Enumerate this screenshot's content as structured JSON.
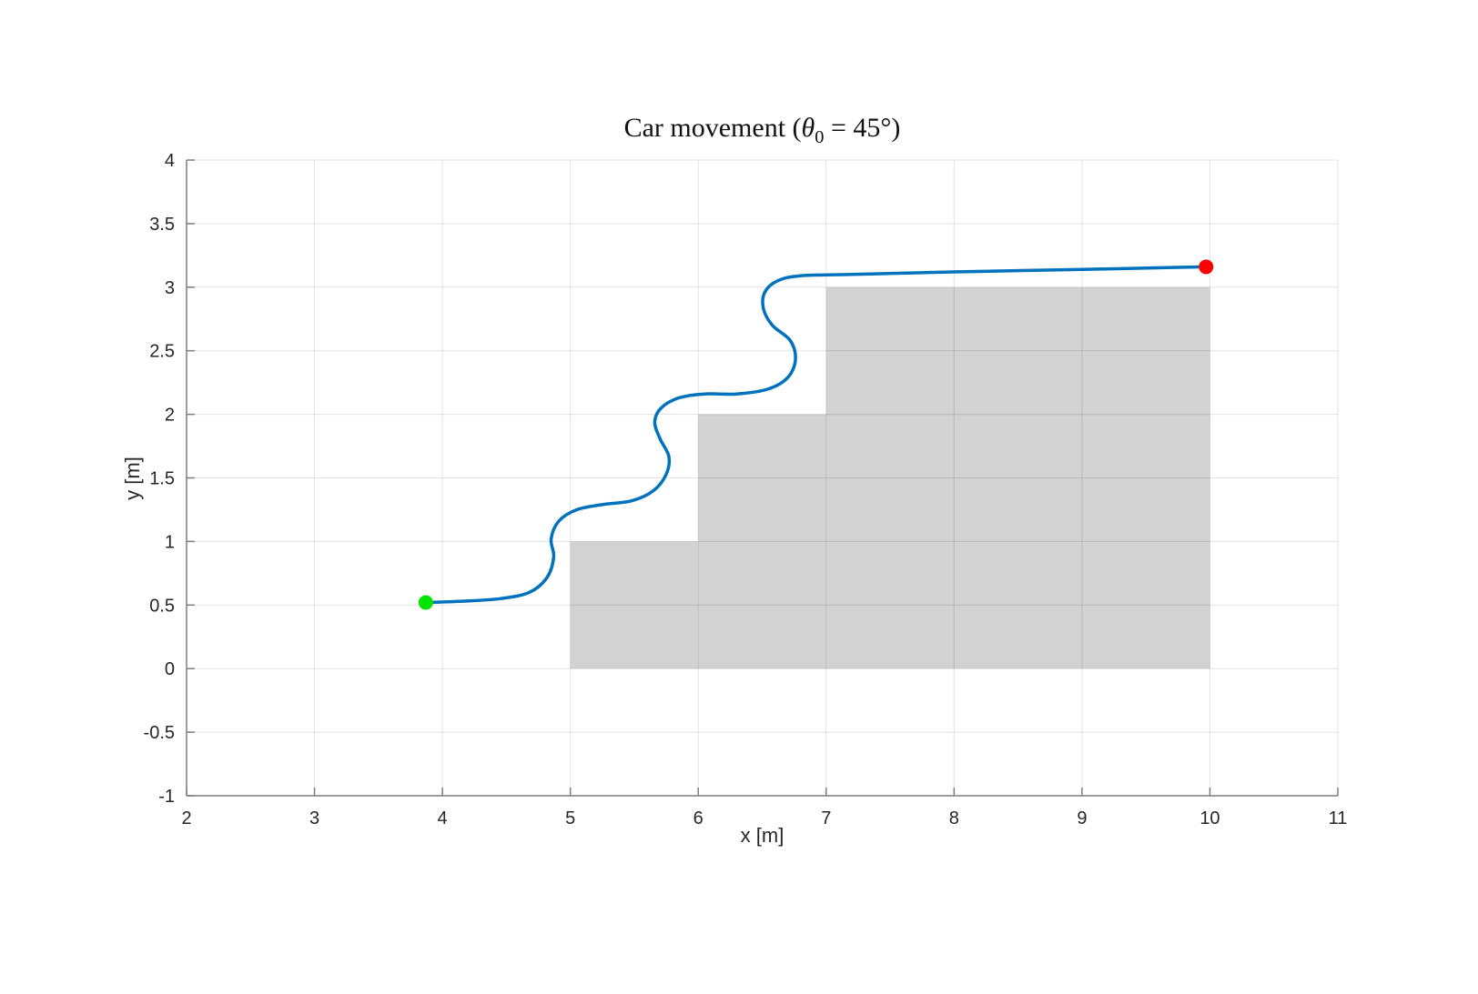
{
  "chart_data": {
    "type": "line",
    "title": "Car movement (θ0 = 45°)",
    "title_parts": {
      "pre": "Car movement (",
      "symbol": "θ",
      "subscript": "0",
      "post": " = 45°)"
    },
    "xlabel": "x [m]",
    "ylabel": "y [m]",
    "xlim": [
      2,
      11
    ],
    "ylim": [
      -1,
      4
    ],
    "xticks": [
      "2",
      "3",
      "4",
      "5",
      "6",
      "7",
      "8",
      "9",
      "10",
      "11"
    ],
    "yticks": [
      "-1",
      "-0.5",
      "0",
      "0.5",
      "1",
      "1.5",
      "2",
      "2.5",
      "3",
      "3.5",
      "4"
    ],
    "grid": true,
    "legend": "none",
    "obstacles": [
      {
        "name": "stair-step-1",
        "x": 5,
        "y": 0,
        "w": 1,
        "h": 1
      },
      {
        "name": "stair-step-2",
        "x": 6,
        "y": 0,
        "w": 1,
        "h": 2
      },
      {
        "name": "stair-step-3",
        "x": 7,
        "y": 0,
        "w": 3,
        "h": 3
      }
    ],
    "series": [
      {
        "name": "car-trajectory",
        "color": "#0072bd",
        "points": [
          [
            3.87,
            0.52
          ],
          [
            4.15,
            0.53
          ],
          [
            4.45,
            0.55
          ],
          [
            4.68,
            0.6
          ],
          [
            4.82,
            0.72
          ],
          [
            4.87,
            0.88
          ],
          [
            4.85,
            1.02
          ],
          [
            4.91,
            1.16
          ],
          [
            5.05,
            1.25
          ],
          [
            5.25,
            1.29
          ],
          [
            5.48,
            1.32
          ],
          [
            5.65,
            1.4
          ],
          [
            5.75,
            1.53
          ],
          [
            5.77,
            1.67
          ],
          [
            5.7,
            1.81
          ],
          [
            5.66,
            1.94
          ],
          [
            5.71,
            2.05
          ],
          [
            5.85,
            2.13
          ],
          [
            6.05,
            2.16
          ],
          [
            6.3,
            2.16
          ],
          [
            6.55,
            2.2
          ],
          [
            6.7,
            2.29
          ],
          [
            6.76,
            2.43
          ],
          [
            6.72,
            2.58
          ],
          [
            6.58,
            2.7
          ],
          [
            6.51,
            2.83
          ],
          [
            6.52,
            2.96
          ],
          [
            6.62,
            3.05
          ],
          [
            6.8,
            3.09
          ],
          [
            7.2,
            3.1
          ],
          [
            8.0,
            3.12
          ],
          [
            9.0,
            3.14
          ],
          [
            9.97,
            3.16
          ]
        ]
      }
    ],
    "markers": [
      {
        "name": "start-point",
        "x": 3.87,
        "y": 0.52,
        "color": "#00e400"
      },
      {
        "name": "end-point",
        "x": 9.97,
        "y": 3.16,
        "color": "#ff0000"
      }
    ],
    "colors": {
      "obstacle": "#d2d2d2",
      "grid": "#262626",
      "axis": "#7d7d7d",
      "text": "#262626",
      "line": "#0072bd",
      "start": "#00e400",
      "end": "#ff0000"
    }
  }
}
